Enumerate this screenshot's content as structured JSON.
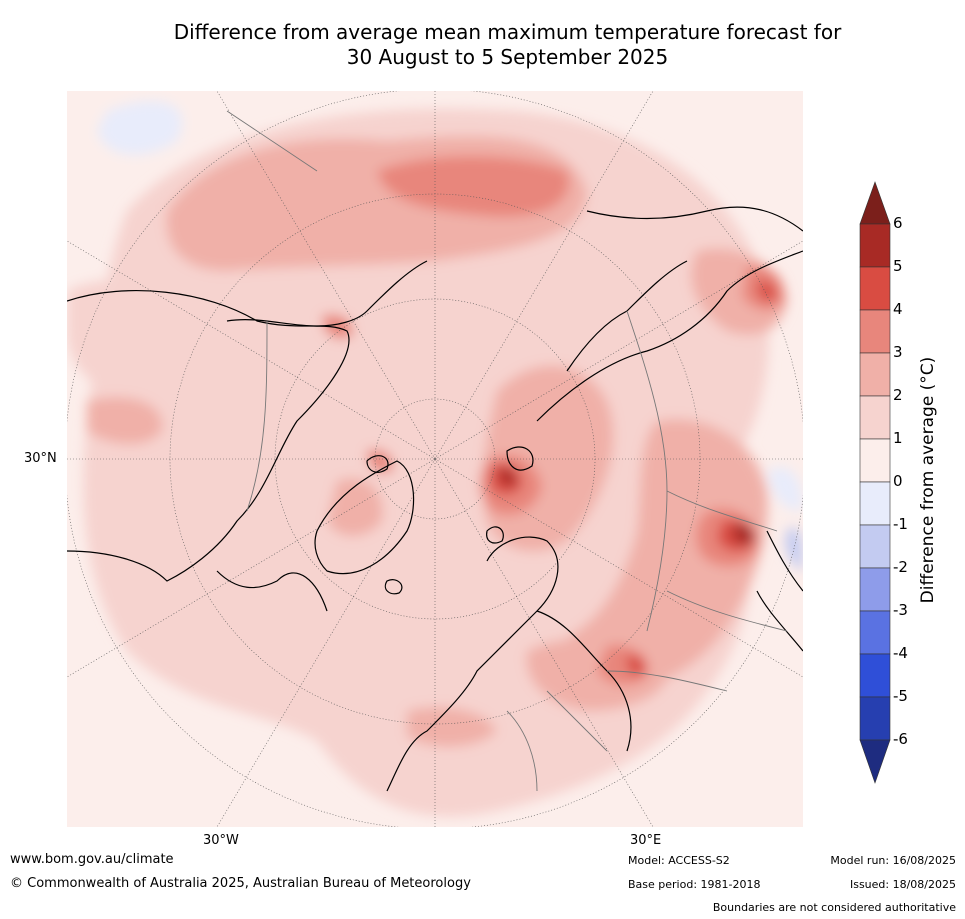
{
  "title_line1": "Difference from average mean maximum temperature forecast for",
  "title_line2": "30 August to 5 September 2025",
  "map": {
    "lat_label": "30°N",
    "lon_label_left": "30°W",
    "lon_label_right": "30°E"
  },
  "colorbar": {
    "label": "Difference from average (°C)",
    "ticks": [
      "6",
      "5",
      "4",
      "3",
      "2",
      "1",
      "0",
      "-1",
      "-2",
      "-3",
      "-4",
      "-5",
      "-6"
    ],
    "colors": [
      "#7b1f1b",
      "#a82a25",
      "#d94c42",
      "#e8867c",
      "#f0b0a8",
      "#f6d3cf",
      "#fceeeb",
      "#e8ecfb",
      "#c3cbf1",
      "#8e9cea",
      "#5a72e2",
      "#2f4fd8",
      "#263fb0",
      "#1e2c80"
    ]
  },
  "footer": {
    "website": "www.bom.gov.au/climate",
    "copyright": "© Commonwealth of Australia 2025, Australian Bureau of Meteorology",
    "model": "Model: ACCESS-S2",
    "base_period": "Base period: 1981-2018",
    "model_run": "Model run: 16/08/2025",
    "issued": "Issued: 18/08/2025",
    "disclaimer": "Boundaries are not considered authoritative"
  }
}
